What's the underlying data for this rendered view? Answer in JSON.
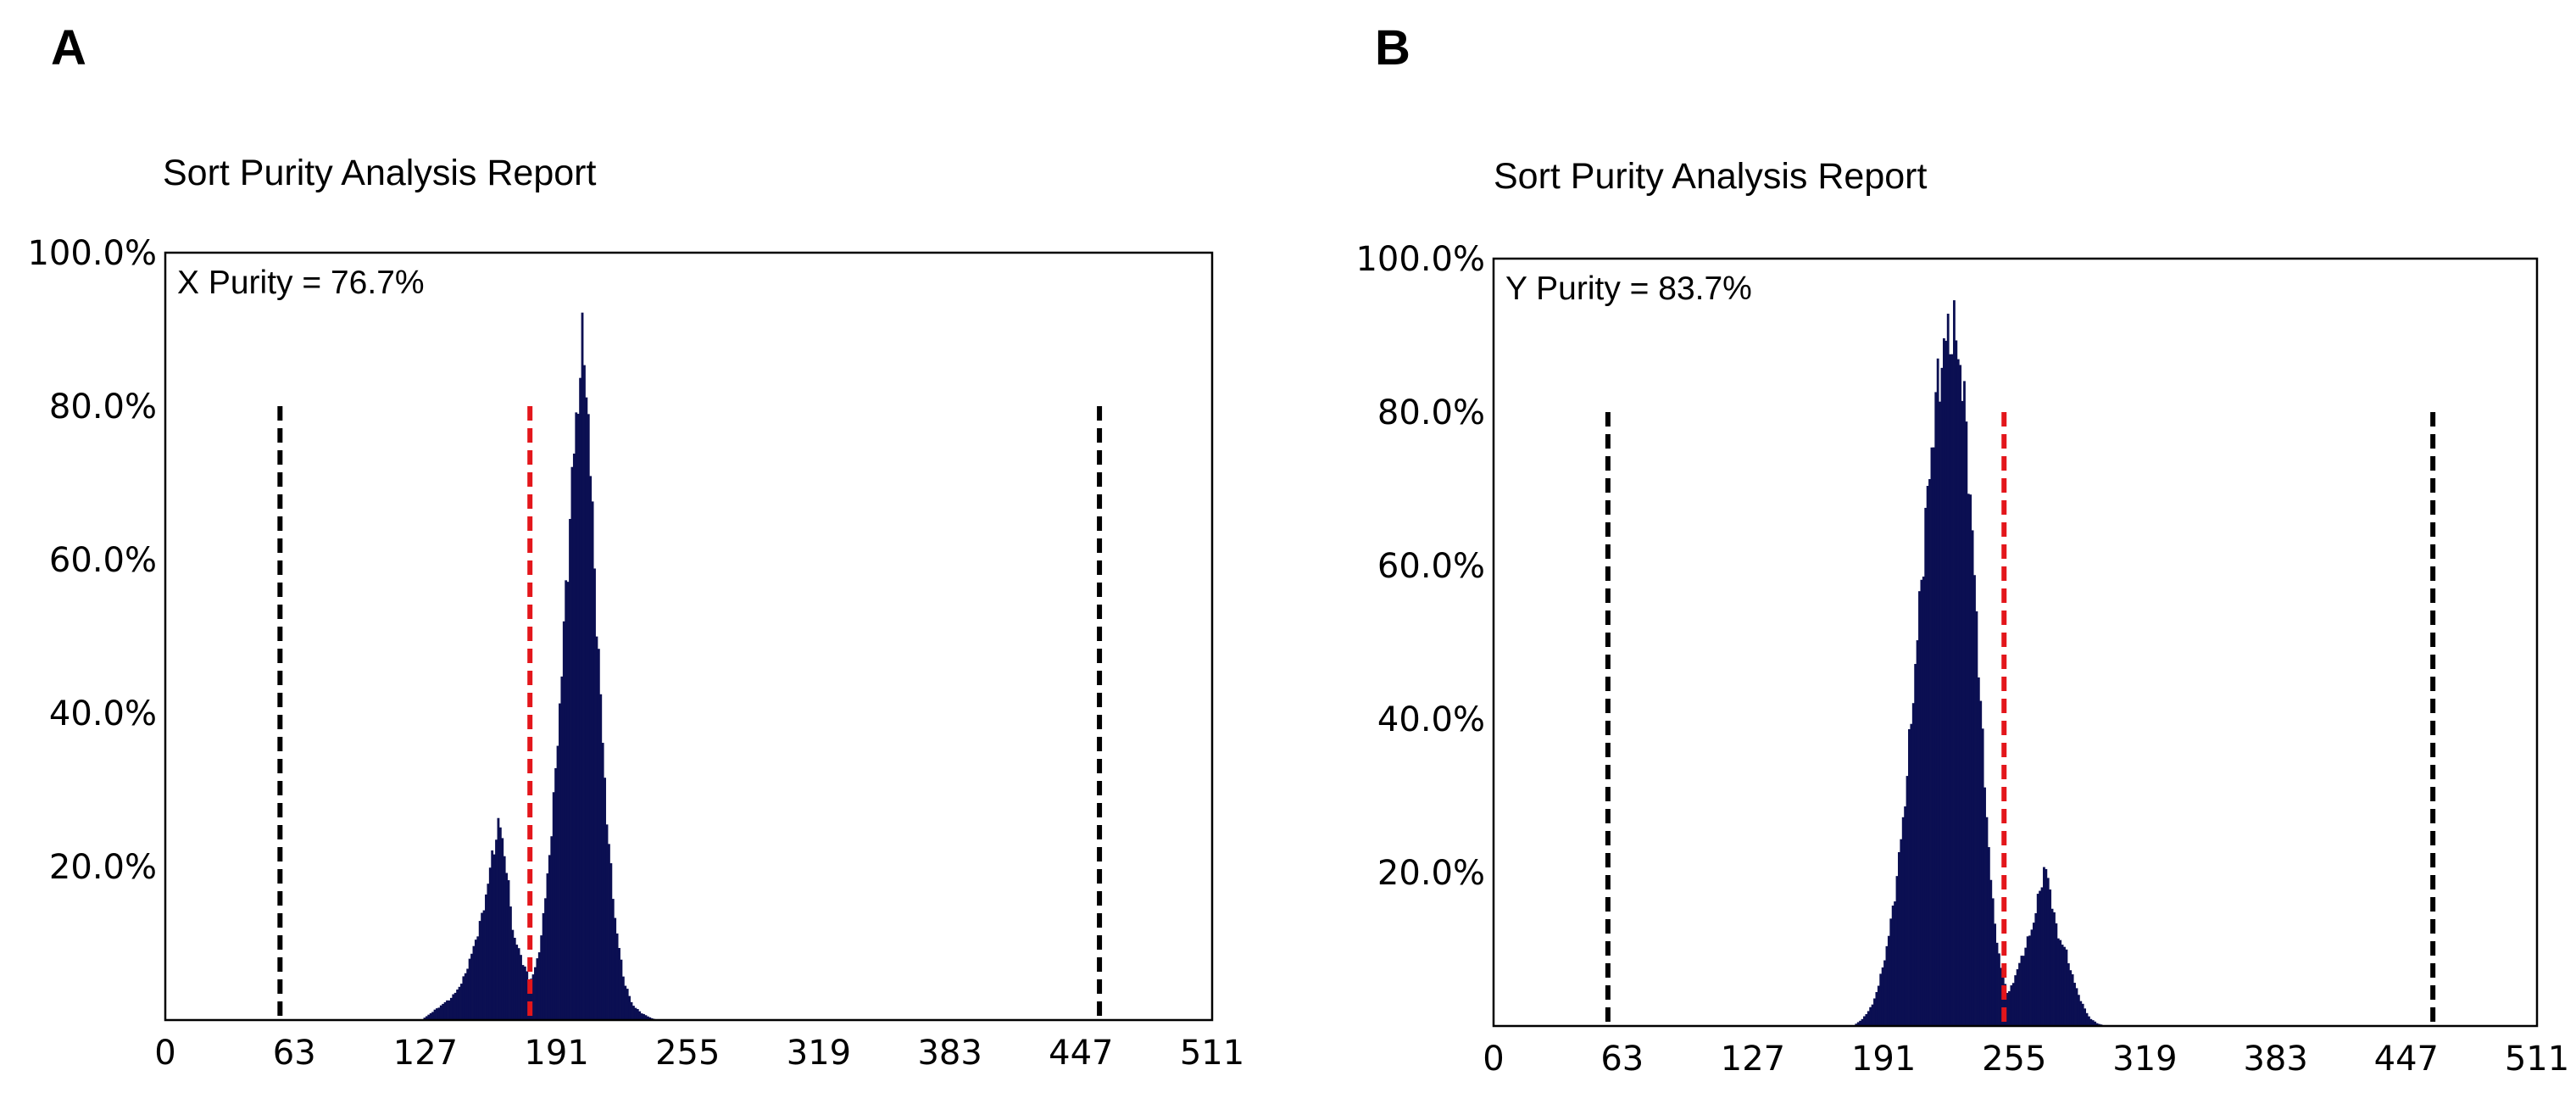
{
  "chart_data": [
    {
      "type": "bar",
      "panel_label": "A",
      "title": "Sort Purity Analysis Report",
      "annotation": "X Purity = 76.7%",
      "xlim": [
        0,
        511
      ],
      "ylim": [
        0,
        100
      ],
      "x_ticks": [
        0,
        63,
        127,
        191,
        255,
        319,
        383,
        447,
        511
      ],
      "x_tick_labels": [
        "0",
        "63",
        "127",
        "191",
        "255",
        "319",
        "383",
        "447",
        "511"
      ],
      "y_ticks": [
        20,
        40,
        60,
        80,
        100
      ],
      "y_tick_labels": [
        "20.0%",
        "40.0%",
        "60.0%",
        "80.0%",
        "100.0%"
      ],
      "reference_lines": [
        {
          "x": 56,
          "y_top": 80,
          "color": "#000000",
          "style": "dashed"
        },
        {
          "x": 178,
          "y_top": 80,
          "color": "#e3161b",
          "style": "dashed"
        },
        {
          "x": 456,
          "y_top": 80,
          "color": "#000000",
          "style": "dashed"
        }
      ],
      "histogram_color": "#0b0f52",
      "histogram": {
        "x": [
          125,
          130,
          135,
          140,
          145,
          150,
          155,
          160,
          163,
          166,
          170,
          174,
          178,
          182,
          186,
          190,
          194,
          198,
          202,
          204,
          206,
          208,
          212,
          216,
          220,
          224,
          228,
          232,
          236,
          240
        ],
        "y": [
          0,
          1,
          2,
          3,
          5,
          9,
          14,
          22,
          26,
          21,
          11,
          8,
          5,
          8,
          17,
          30,
          48,
          68,
          84,
          88,
          82,
          68,
          44,
          24,
          12,
          5,
          2,
          1,
          0.4,
          0
        ]
      }
    },
    {
      "type": "bar",
      "panel_label": "B",
      "title": "Sort Purity Analysis Report",
      "annotation": "Y Purity = 83.7%",
      "xlim": [
        0,
        511
      ],
      "ylim": [
        0,
        100
      ],
      "x_ticks": [
        0,
        63,
        127,
        191,
        255,
        319,
        383,
        447,
        511
      ],
      "x_tick_labels": [
        "0",
        "63",
        "127",
        "191",
        "255",
        "319",
        "383",
        "447",
        "511"
      ],
      "y_ticks": [
        20,
        40,
        60,
        80,
        100
      ],
      "y_tick_labels": [
        "20.0%",
        "40.0%",
        "60.0%",
        "80.0%",
        "100.0%"
      ],
      "reference_lines": [
        {
          "x": 56,
          "y_top": 80,
          "color": "#000000",
          "style": "dashed"
        },
        {
          "x": 250,
          "y_top": 80,
          "color": "#e3161b",
          "style": "dashed"
        },
        {
          "x": 460,
          "y_top": 80,
          "color": "#000000",
          "style": "dashed"
        }
      ],
      "histogram_color": "#0b0f52",
      "histogram": {
        "x": [
          176,
          181,
          186,
          191,
          196,
          201,
          206,
          211,
          216,
          220,
          224,
          228,
          232,
          236,
          240,
          244,
          248,
          252,
          256,
          260,
          264,
          267,
          270,
          273,
          276,
          280,
          284,
          288,
          292,
          296,
          300
        ],
        "y": [
          0,
          1,
          3,
          8,
          16,
          28,
          45,
          64,
          80,
          88,
          91,
          88,
          76,
          56,
          34,
          17,
          8,
          4,
          7,
          10,
          13,
          17,
          21,
          17,
          12,
          10,
          6,
          3,
          1,
          0.3,
          0
        ]
      }
    }
  ]
}
